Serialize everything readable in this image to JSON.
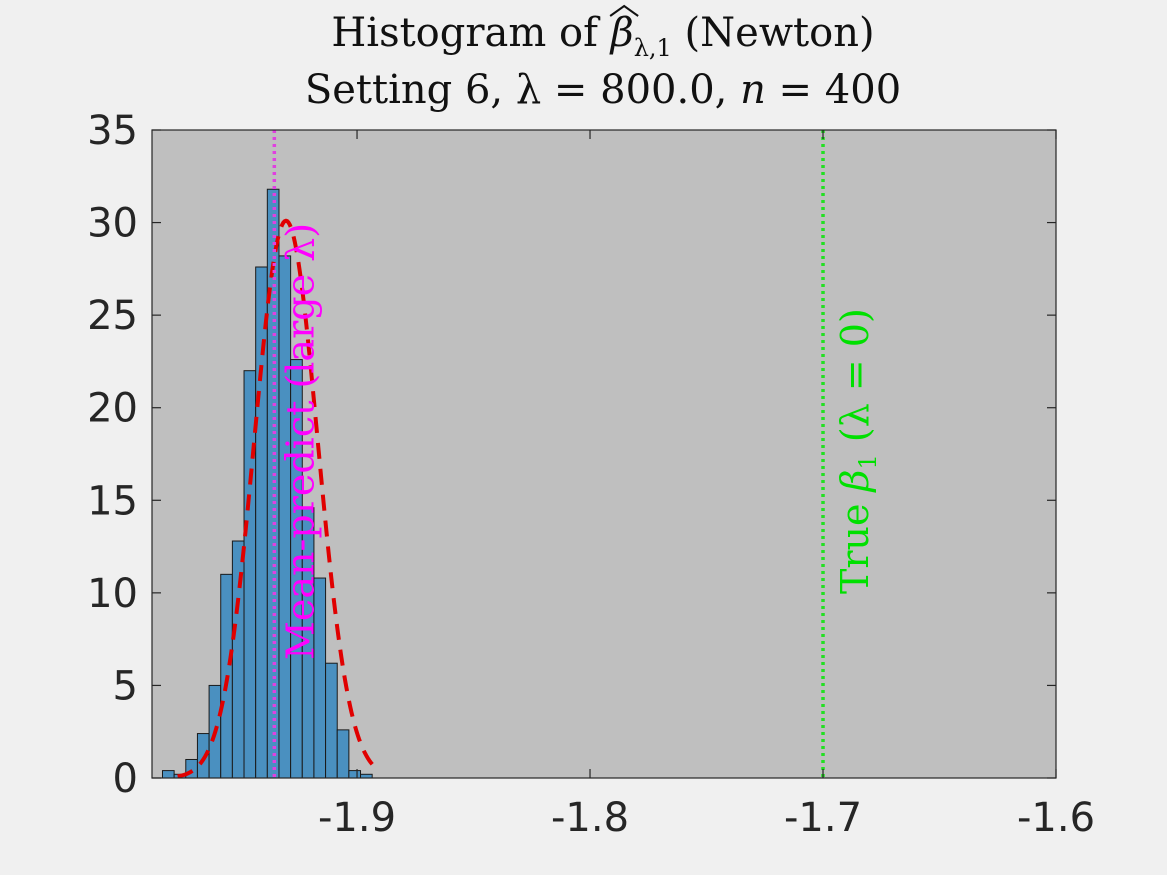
{
  "chart_data": {
    "type": "bar",
    "title_line1": {
      "prefix": "Histogram of ",
      "symbol": "β",
      "subscript": "λ,1",
      "suffix": " (Newton)"
    },
    "title_line2": {
      "prefix": "Setting 6, ",
      "lambda_label": "λ = 800.0, ",
      "n_italic": "n",
      "n_rest": " = 400"
    },
    "xlim": [
      -1.988,
      -1.6
    ],
    "ylim": [
      0,
      35
    ],
    "xticks": [
      -1.9,
      -1.8,
      -1.7,
      -1.6
    ],
    "xtick_labels": [
      "-1.9",
      "-1.8",
      "-1.7",
      "-1.6"
    ],
    "yticks": [
      0,
      5,
      10,
      15,
      20,
      25,
      30,
      35
    ],
    "ytick_labels": [
      "0",
      "5",
      "10",
      "15",
      "20",
      "25",
      "30",
      "35"
    ],
    "plot_background": "#bfbfbf",
    "figure_background": "#f0f0f0",
    "bins": {
      "edges": [
        -1.9835,
        -1.9785,
        -1.9735,
        -1.9685,
        -1.9635,
        -1.9585,
        -1.9535,
        -1.9485,
        -1.9435,
        -1.9385,
        -1.9335,
        -1.9285,
        -1.9235,
        -1.9185,
        -1.9135,
        -1.9085,
        -1.9035,
        -1.8985,
        -1.8935,
        -1.8885
      ],
      "values": [
        0.4,
        0.2,
        1.0,
        2.4,
        5.0,
        11.0,
        12.8,
        22.0,
        27.6,
        31.8,
        28.2,
        22.6,
        14.6,
        10.8,
        6.2,
        2.6,
        0.4,
        0.2,
        0.0
      ],
      "fill_color": "#4a90c0",
      "edge_color": "#1a1a1a"
    },
    "fit_curve": {
      "mean": -1.9305,
      "sd": 0.0136,
      "peak": 30.1,
      "x_start": -1.977,
      "x_end": -1.8905,
      "color": "#e00000",
      "style": "dashed"
    },
    "vlines": [
      {
        "x": -1.9355,
        "color": "#e040e0",
        "style": "dotted",
        "label": "Mean-predict (large λ)",
        "label_color": "#ff00ff"
      },
      {
        "x": -1.7,
        "color": "#22e022",
        "style": "dotted",
        "label_prefix": "True ",
        "label_symbol": "β",
        "label_subscript": "1",
        "label_suffix": " (λ = 0)",
        "label_color": "#00e000"
      }
    ]
  }
}
